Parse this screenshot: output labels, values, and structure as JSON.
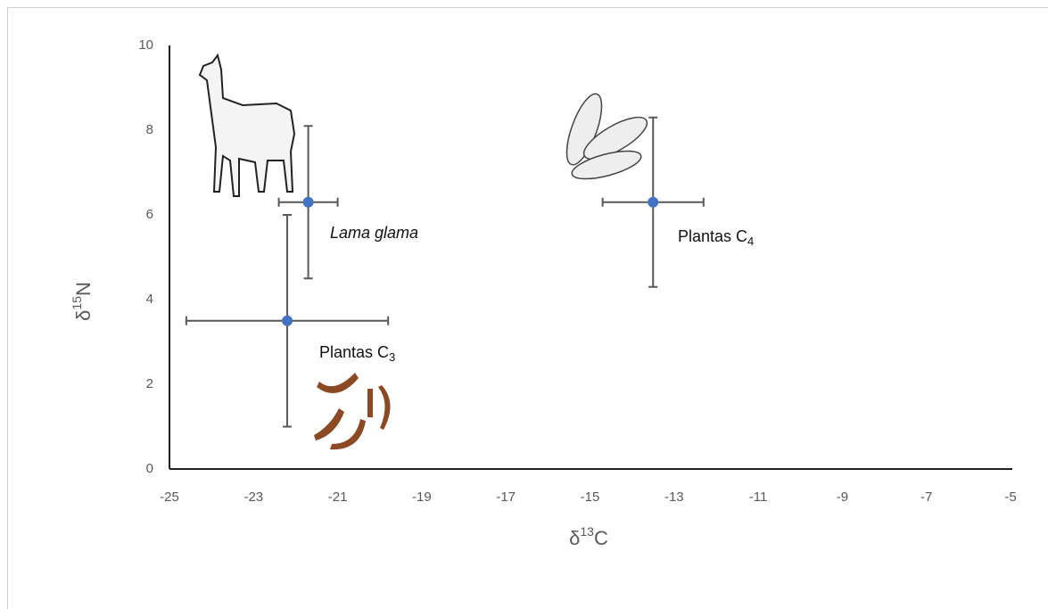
{
  "chart_data": {
    "type": "scatter",
    "x_label": {
      "base": "δ",
      "sup": "13",
      "rest": "C"
    },
    "y_label": {
      "base": "δ",
      "sup": "15",
      "rest": "N"
    },
    "color": "#4472c4",
    "error_color": "#595959",
    "xlim": [
      -25,
      -5
    ],
    "xticks": [
      -25,
      -23,
      -21,
      -19,
      -17,
      -15,
      -13,
      -11,
      -9,
      -7,
      -5
    ],
    "ylim": [
      0,
      10
    ],
    "yticks": [
      0,
      2,
      4,
      6,
      8,
      10
    ],
    "points": [
      {
        "label": {
          "text": "Lama glama"
        },
        "x": -21.7,
        "y": 6.3,
        "xerr": 0.7,
        "yerr": 1.8
      },
      {
        "label": {
          "text": "Plantas C",
          "sub": "3"
        },
        "x": -22.2,
        "y": 3.5,
        "xerr": 2.4,
        "yerr": 2.5
      },
      {
        "label": {
          "text": "Plantas C",
          "sub": "4"
        },
        "x": -13.5,
        "y": 6.3,
        "xerr": 1.2,
        "yerr": 2.0
      }
    ]
  }
}
